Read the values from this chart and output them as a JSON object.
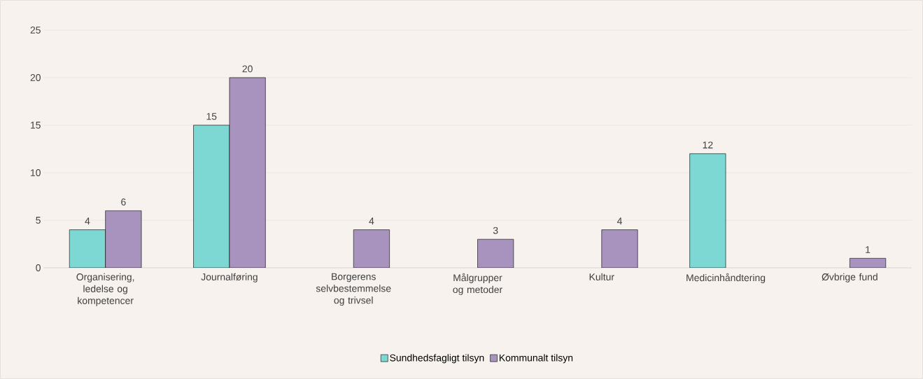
{
  "chart_data": {
    "type": "bar",
    "categories": [
      "Organisering, ledelse og kompetencer",
      "Journalføring",
      "Borgerens selvbestemmelse og trivsel",
      "Målgrupper og metoder",
      "Kultur",
      "Medicinhåndtering",
      "Øvbrige fund"
    ],
    "series": [
      {
        "name": "Sundhedsfagligt tilsyn",
        "color": "#7dd7d3",
        "values": [
          4,
          15,
          null,
          null,
          null,
          12,
          null
        ]
      },
      {
        "name": "Kommunalt tilsyn",
        "color": "#a893be",
        "values": [
          6,
          20,
          4,
          3,
          4,
          null,
          1
        ]
      }
    ],
    "ylim": [
      0,
      25
    ],
    "yticks": [
      0,
      5,
      10,
      15,
      20,
      25
    ],
    "grid": "y",
    "legend": "bottom",
    "data_labels": true
  }
}
